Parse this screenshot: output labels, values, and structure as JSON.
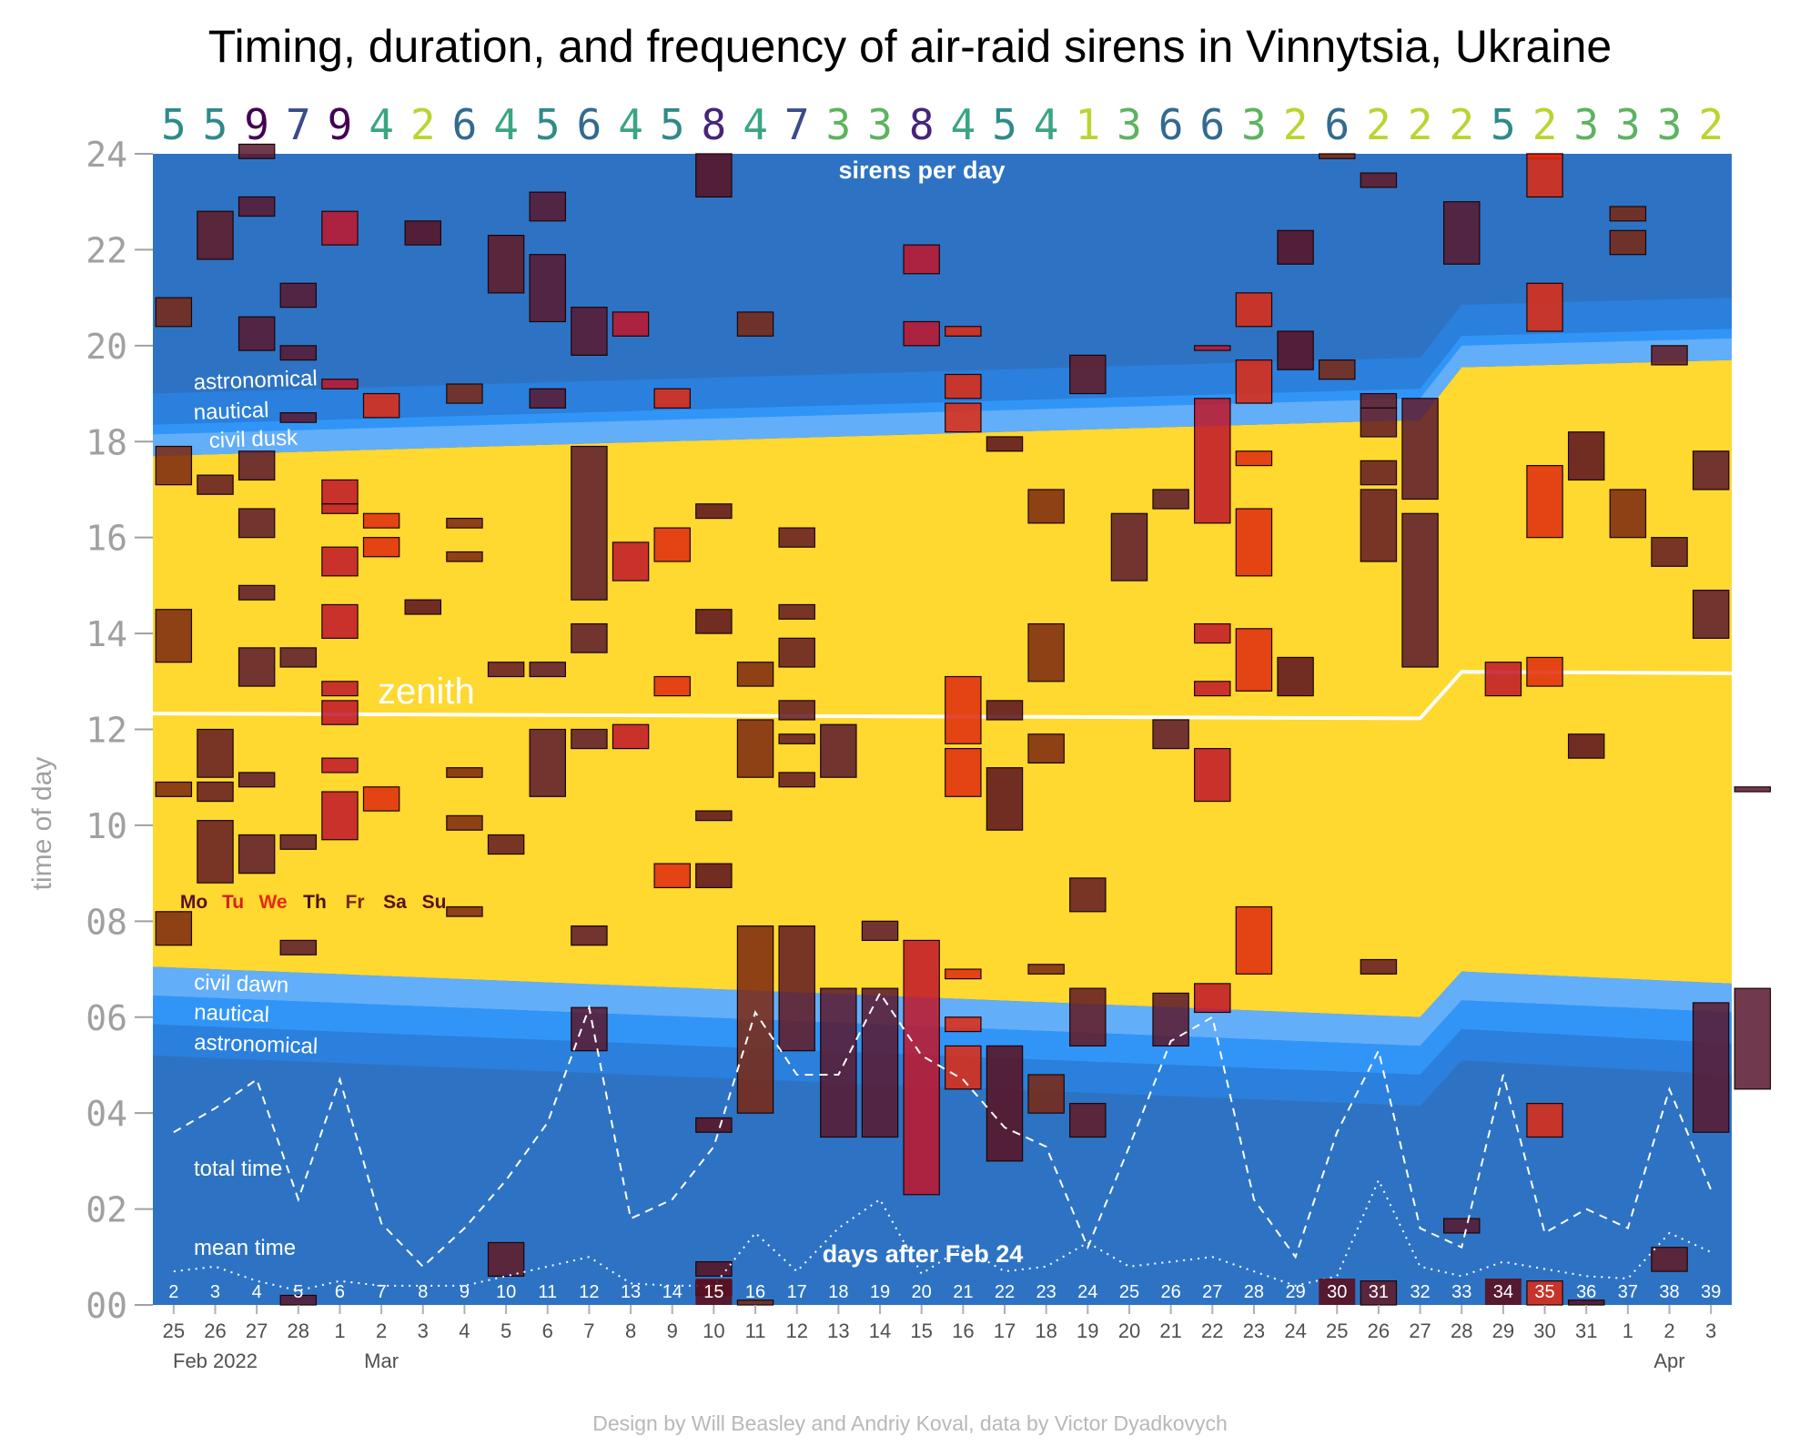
{
  "chart_data": {
    "type": "timeline",
    "title": "Timing, duration, and frequency of air-raid sirens in Vinnytsia, Ukraine",
    "ylabel": "time of day",
    "ylim": [
      0,
      24
    ],
    "y_ticks": [
      "00",
      "02",
      "04",
      "06",
      "08",
      "10",
      "12",
      "14",
      "16",
      "18",
      "20",
      "22",
      "24"
    ],
    "x_date_labels": [
      "25",
      "26",
      "27",
      "28",
      "1",
      "2",
      "3",
      "4",
      "5",
      "6",
      "7",
      "8",
      "9",
      "10",
      "11",
      "12",
      "13",
      "14",
      "15",
      "16",
      "17",
      "18",
      "19",
      "20",
      "21",
      "22",
      "23",
      "24",
      "25",
      "26",
      "27",
      "28",
      "29",
      "30",
      "31",
      "1",
      "2",
      "3"
    ],
    "x_days_after": [
      "2",
      "3",
      "4",
      "5",
      "6",
      "7",
      "8",
      "9",
      "10",
      "11",
      "12",
      "13",
      "14",
      "15",
      "16",
      "17",
      "18",
      "19",
      "20",
      "21",
      "22",
      "23",
      "24",
      "25",
      "26",
      "27",
      "28",
      "29",
      "30",
      "31",
      "32",
      "33",
      "34",
      "35",
      "36",
      "37",
      "38",
      "39"
    ],
    "highlighted_days": [
      "15",
      "30",
      "34"
    ],
    "month_labels": [
      {
        "index": 1,
        "text": "Feb 2022"
      },
      {
        "index": 5,
        "text": "Mar"
      },
      {
        "index": 36,
        "text": "Apr"
      }
    ],
    "sirens_per_day": [
      5,
      5,
      9,
      7,
      9,
      4,
      2,
      6,
      4,
      5,
      6,
      4,
      5,
      8,
      4,
      7,
      3,
      3,
      8,
      4,
      5,
      4,
      1,
      3,
      6,
      6,
      3,
      2,
      6,
      2,
      2,
      2,
      5,
      2,
      3,
      3,
      3,
      2
    ],
    "weekday_legend": [
      {
        "label": "Mo",
        "color": "#5a1020"
      },
      {
        "label": "Tu",
        "color": "#d81e1e"
      },
      {
        "label": "We",
        "color": "#e82a10"
      },
      {
        "label": "Th",
        "color": "#4a1010"
      },
      {
        "label": "Fr",
        "color": "#7a2a10"
      },
      {
        "label": "Sa",
        "color": "#5a1010"
      },
      {
        "label": "Su",
        "color": "#5a1020"
      }
    ],
    "annotations": {
      "sirens_per_day": "sirens per day",
      "astronomical_dusk": "astronomical",
      "nautical_dusk": "nautical",
      "civil_dusk": "civil dusk",
      "zenith": "zenith",
      "civil_dawn": "civil dawn",
      "nautical_dawn": "nautical",
      "astronomical_dawn": "astronomical",
      "total_time": "total time",
      "mean_time": "mean time",
      "days_after": "days after Feb 24"
    },
    "sun": {
      "breaks": [
        0,
        30.5,
        31.5,
        38
      ],
      "zenith": [
        12.33,
        12.23,
        13.2,
        13.17
      ],
      "civil_dawn": [
        7.05,
        6.0,
        6.95,
        6.7
      ],
      "nautical_dawn": [
        6.45,
        5.4,
        6.35,
        6.1
      ],
      "astronomical_dawn": [
        5.85,
        4.8,
        5.75,
        5.45
      ],
      "civil_dusk": [
        17.7,
        18.45,
        19.55,
        19.7
      ],
      "nautical_dusk": [
        18.35,
        19.1,
        20.2,
        20.35
      ],
      "astronomical_dusk": [
        19.0,
        19.75,
        20.85,
        21.0
      ]
    },
    "total_time": [
      3.6,
      4.1,
      4.7,
      2.2,
      4.7,
      1.7,
      0.8,
      1.6,
      2.6,
      3.8,
      6.2,
      1.8,
      2.2,
      3.3,
      6.1,
      4.8,
      4.8,
      6.5,
      5.2,
      4.7,
      3.7,
      3.3,
      1.2,
      3.3,
      5.5,
      6.0,
      2.2,
      1.0,
      3.6,
      5.3,
      1.6,
      1.2,
      4.8,
      1.5,
      2.0,
      1.6,
      4.5,
      2.4
    ],
    "mean_time": [
      0.7,
      0.8,
      0.5,
      0.3,
      0.5,
      0.4,
      0.4,
      0.4,
      0.6,
      0.8,
      1.0,
      0.45,
      0.4,
      0.4,
      1.5,
      0.7,
      1.6,
      2.2,
      0.65,
      1.2,
      0.7,
      0.8,
      1.3,
      0.8,
      0.9,
      1.0,
      0.7,
      0.4,
      0.6,
      2.6,
      0.8,
      0.6,
      0.9,
      0.75,
      0.6,
      0.55,
      1.5,
      1.1
    ],
    "events": [
      [
        0,
        20.4,
        21.0
      ],
      [
        0,
        17.1,
        17.9
      ],
      [
        0,
        13.4,
        14.5
      ],
      [
        0,
        10.6,
        10.9
      ],
      [
        0,
        7.5,
        8.2
      ],
      [
        1,
        21.8,
        22.8
      ],
      [
        1,
        16.9,
        17.3
      ],
      [
        1,
        11.0,
        12.0
      ],
      [
        1,
        10.5,
        10.9
      ],
      [
        1,
        8.8,
        10.1
      ],
      [
        2,
        23.9,
        24.2
      ],
      [
        2,
        22.7,
        23.1
      ],
      [
        2,
        19.9,
        20.6
      ],
      [
        2,
        17.2,
        17.8
      ],
      [
        2,
        16.0,
        16.6
      ],
      [
        2,
        14.7,
        15.0
      ],
      [
        2,
        12.9,
        13.7
      ],
      [
        2,
        10.8,
        11.1
      ],
      [
        2,
        9.0,
        9.8
      ],
      [
        3,
        20.8,
        21.3
      ],
      [
        3,
        19.7,
        20.0
      ],
      [
        3,
        18.4,
        18.6
      ],
      [
        3,
        13.3,
        13.7
      ],
      [
        3,
        9.5,
        9.8
      ],
      [
        3,
        7.3,
        7.6
      ],
      [
        3,
        0.0,
        0.2
      ],
      [
        4,
        22.1,
        22.8
      ],
      [
        4,
        19.1,
        19.3
      ],
      [
        4,
        16.7,
        17.2
      ],
      [
        4,
        16.5,
        16.7
      ],
      [
        4,
        15.2,
        15.8
      ],
      [
        4,
        13.9,
        14.6
      ],
      [
        4,
        12.7,
        13.0
      ],
      [
        4,
        12.1,
        12.6
      ],
      [
        4,
        11.1,
        11.4
      ],
      [
        4,
        9.7,
        10.7
      ],
      [
        5,
        18.5,
        19.0
      ],
      [
        5,
        16.2,
        16.5
      ],
      [
        5,
        15.6,
        16.0
      ],
      [
        5,
        10.3,
        10.8
      ],
      [
        6,
        22.1,
        22.6
      ],
      [
        6,
        14.4,
        14.7
      ],
      [
        7,
        18.8,
        19.2
      ],
      [
        7,
        16.2,
        16.4
      ],
      [
        7,
        15.5,
        15.7
      ],
      [
        7,
        11.0,
        11.2
      ],
      [
        7,
        9.9,
        10.2
      ],
      [
        7,
        8.1,
        8.3
      ],
      [
        8,
        21.1,
        22.3
      ],
      [
        8,
        13.1,
        13.4
      ],
      [
        8,
        9.4,
        9.8
      ],
      [
        8,
        0.6,
        1.3
      ],
      [
        9,
        22.6,
        23.2
      ],
      [
        9,
        20.5,
        21.9
      ],
      [
        9,
        18.7,
        19.1
      ],
      [
        9,
        13.1,
        13.4
      ],
      [
        9,
        10.6,
        12.0
      ],
      [
        10,
        19.8,
        20.8
      ],
      [
        10,
        14.7,
        17.9
      ],
      [
        10,
        13.6,
        14.2
      ],
      [
        10,
        11.6,
        12.0
      ],
      [
        10,
        7.5,
        7.9
      ],
      [
        10,
        5.3,
        6.2
      ],
      [
        11,
        20.2,
        20.7
      ],
      [
        11,
        15.1,
        15.9
      ],
      [
        11,
        11.6,
        12.1
      ],
      [
        12,
        18.7,
        19.1
      ],
      [
        12,
        15.5,
        16.2
      ],
      [
        12,
        12.7,
        13.1
      ],
      [
        12,
        8.7,
        9.2
      ],
      [
        13,
        23.1,
        24.0
      ],
      [
        13,
        16.4,
        16.7
      ],
      [
        13,
        14.0,
        14.5
      ],
      [
        13,
        10.1,
        10.3
      ],
      [
        13,
        8.7,
        9.2
      ],
      [
        13,
        3.6,
        3.9
      ],
      [
        13,
        0.6,
        0.9
      ],
      [
        13,
        0.2,
        0.5
      ],
      [
        14,
        20.2,
        20.7
      ],
      [
        14,
        12.9,
        13.4
      ],
      [
        14,
        11.0,
        12.2
      ],
      [
        14,
        4.0,
        7.9
      ],
      [
        14,
        0.0,
        0.1
      ],
      [
        15,
        15.8,
        16.2
      ],
      [
        15,
        14.3,
        14.6
      ],
      [
        15,
        13.3,
        13.9
      ],
      [
        15,
        12.2,
        12.6
      ],
      [
        15,
        11.7,
        11.9
      ],
      [
        15,
        10.8,
        11.1
      ],
      [
        15,
        5.3,
        7.9
      ],
      [
        16,
        11.0,
        12.1
      ],
      [
        16,
        3.5,
        6.6
      ],
      [
        17,
        7.6,
        8.0
      ],
      [
        17,
        3.5,
        6.6
      ],
      [
        18,
        21.5,
        22.1
      ],
      [
        18,
        20.0,
        20.5
      ],
      [
        18,
        2.3,
        7.6
      ],
      [
        19,
        20.2,
        20.4
      ],
      [
        19,
        18.9,
        19.4
      ],
      [
        19,
        18.2,
        18.8
      ],
      [
        19,
        11.7,
        13.1
      ],
      [
        19,
        10.6,
        11.6
      ],
      [
        19,
        6.8,
        7.0
      ],
      [
        19,
        5.7,
        6.0
      ],
      [
        19,
        4.5,
        5.4
      ],
      [
        20,
        17.8,
        18.1
      ],
      [
        20,
        12.2,
        12.6
      ],
      [
        20,
        9.9,
        11.2
      ],
      [
        20,
        3.0,
        5.4
      ],
      [
        21,
        16.3,
        17.0
      ],
      [
        21,
        13.0,
        14.2
      ],
      [
        21,
        11.3,
        11.9
      ],
      [
        21,
        6.9,
        7.1
      ],
      [
        21,
        4.0,
        4.8
      ],
      [
        22,
        19.0,
        19.8
      ],
      [
        22,
        8.2,
        8.9
      ],
      [
        22,
        5.4,
        6.6
      ],
      [
        22,
        3.5,
        4.2
      ],
      [
        23,
        15.1,
        16.5
      ],
      [
        24,
        16.6,
        17.0
      ],
      [
        24,
        11.6,
        12.2
      ],
      [
        24,
        5.4,
        6.5
      ],
      [
        25,
        19.9,
        20.0
      ],
      [
        25,
        16.3,
        18.9
      ],
      [
        25,
        13.8,
        14.2
      ],
      [
        25,
        12.7,
        13.0
      ],
      [
        25,
        10.5,
        11.6
      ],
      [
        25,
        6.1,
        6.7
      ],
      [
        26,
        20.4,
        21.1
      ],
      [
        26,
        18.8,
        19.7
      ],
      [
        26,
        17.5,
        17.8
      ],
      [
        26,
        15.2,
        16.6
      ],
      [
        26,
        12.8,
        14.1
      ],
      [
        26,
        6.9,
        8.3
      ],
      [
        27,
        21.7,
        22.4
      ],
      [
        27,
        19.5,
        20.3
      ],
      [
        27,
        12.7,
        13.5
      ],
      [
        28,
        23.9,
        24.0
      ],
      [
        28,
        19.3,
        19.7
      ],
      [
        29,
        23.3,
        23.6
      ],
      [
        29,
        18.7,
        19.0
      ],
      [
        29,
        18.1,
        18.7
      ],
      [
        29,
        17.1,
        17.6
      ],
      [
        29,
        15.5,
        17.0
      ],
      [
        29,
        6.9,
        7.2
      ],
      [
        29,
        0.0,
        0.5
      ],
      [
        30,
        16.8,
        18.9
      ],
      [
        30,
        13.3,
        16.5
      ],
      [
        31,
        21.7,
        23.0
      ],
      [
        31,
        1.5,
        1.8
      ],
      [
        32,
        12.7,
        13.4
      ],
      [
        33,
        23.9,
        24.0
      ],
      [
        33,
        23.1,
        24.0
      ],
      [
        33,
        20.3,
        21.3
      ],
      [
        33,
        16.0,
        17.5
      ],
      [
        33,
        12.9,
        13.5
      ],
      [
        33,
        3.5,
        4.2
      ],
      [
        33,
        0.0,
        0.5
      ],
      [
        34,
        17.2,
        18.2
      ],
      [
        34,
        11.4,
        11.9
      ],
      [
        34,
        0.0,
        0.1
      ],
      [
        35,
        22.6,
        22.9
      ],
      [
        35,
        21.9,
        22.4
      ],
      [
        35,
        16.0,
        17.0
      ],
      [
        36,
        19.6,
        20.0
      ],
      [
        36,
        15.4,
        16.0
      ],
      [
        36,
        0.7,
        1.2
      ],
      [
        37,
        17.0,
        17.8
      ],
      [
        37,
        13.9,
        14.9
      ],
      [
        37,
        3.6,
        6.3
      ],
      [
        38,
        10.7,
        10.8
      ],
      [
        38,
        4.5,
        6.6
      ]
    ]
  },
  "credit": "Design by Will Beasley and Andriy Koval, data by Victor Dyadkovych",
  "colors": {
    "night": "#2e73c3",
    "astronomical": "#2a80dc",
    "nautical": "#3195f8",
    "civil": "#63aef8",
    "day": "#ffd830",
    "zenith_line": "#ffffff",
    "count_palette": [
      "#b9d532",
      "#5db35f",
      "#3aa680",
      "#2f8a8a",
      "#336a8f",
      "#3b4b8a",
      "#45257a",
      "#440154"
    ]
  }
}
